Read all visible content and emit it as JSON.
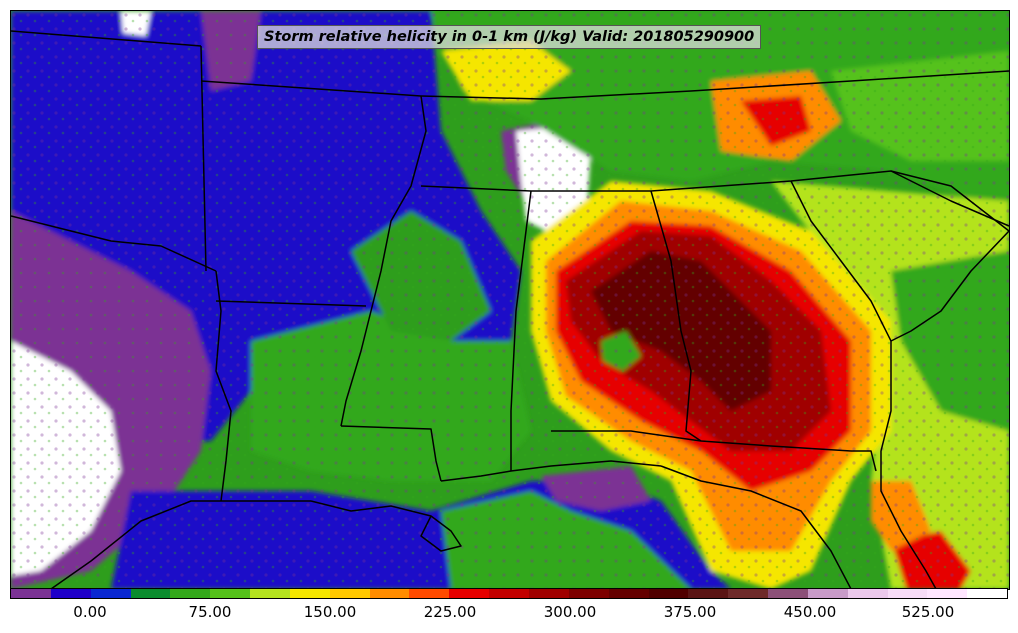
{
  "title": "Storm relative helicity in 0-1 km (J/kg) Valid: 201805290900",
  "colorbar": {
    "colors": [
      "#7b3294",
      "#1f00c8",
      "#0a28d2",
      "#0a8c2d",
      "#33a81a",
      "#55c21a",
      "#b4e31e",
      "#f5e600",
      "#ffc800",
      "#ff8c00",
      "#ff4b00",
      "#e60000",
      "#c30000",
      "#a00000",
      "#7d0000",
      "#640000",
      "#500000",
      "#5a1414",
      "#6e2a2a",
      "#8c5078",
      "#c89bc8",
      "#ebc8eb",
      "#f7dcf7",
      "#ffe6ff",
      "#ffffff"
    ],
    "ticks": [
      "0.00",
      "75.00",
      "150.00",
      "225.00",
      "300.00",
      "375.00",
      "450.00",
      "525.00"
    ]
  },
  "legend_colors": {
    "low": "#1f00c8",
    "negative": "#7b3294",
    "mid": "#33a81a",
    "high": "#e60000",
    "extreme": "#640000",
    "missing": "#ffffff"
  }
}
